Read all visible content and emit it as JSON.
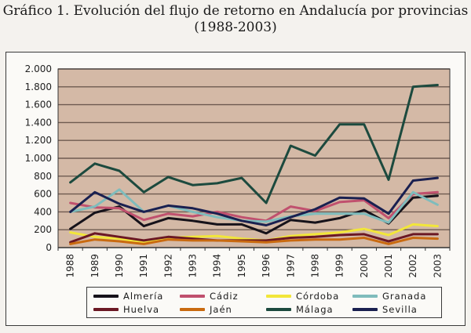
{
  "title": {
    "line1": "Gráfico 1. Evolución del flujo de retorno en Andalucía por provincias",
    "line2": "(1988-2003)"
  },
  "colors": {
    "plot_background": "#d4b9a6",
    "gridline": "#6e5a50",
    "axis": "#333333"
  },
  "chart_data": {
    "type": "line",
    "title": "Gráfico 1. Evolución del flujo de retorno en Andalucía por provincias (1988-2003)",
    "xlabel": "",
    "ylabel": "",
    "grid": true,
    "legend_position": "bottom",
    "ylim": [
      0,
      2000
    ],
    "y_ticks": [
      0,
      200,
      400,
      600,
      800,
      1000,
      1200,
      1400,
      1600,
      1800,
      2000
    ],
    "y_tick_labels": [
      "0",
      "200",
      "400",
      "600",
      "800",
      "1.000",
      "1.200",
      "1.400",
      "1.600",
      "1.800",
      "2.000"
    ],
    "categories": [
      "1988",
      "1989",
      "1990",
      "1991",
      "1992",
      "1993",
      "1994",
      "1995",
      "1996",
      "1997",
      "1998",
      "1999",
      "2000",
      "2001",
      "2002",
      "2003"
    ],
    "series": [
      {
        "name": "Almería",
        "color": "#16121a",
        "values": [
          210,
          390,
          460,
          240,
          330,
          300,
          260,
          260,
          160,
          310,
          280,
          330,
          420,
          270,
          560,
          580
        ]
      },
      {
        "name": "Cádiz",
        "color": "#c0506e",
        "values": [
          500,
          450,
          440,
          310,
          380,
          350,
          400,
          340,
          300,
          460,
          410,
          510,
          530,
          330,
          600,
          620
        ]
      },
      {
        "name": "Córdoba",
        "color": "#f2e63a",
        "values": [
          170,
          120,
          100,
          60,
          110,
          120,
          130,
          100,
          80,
          130,
          150,
          170,
          210,
          140,
          260,
          240
        ]
      },
      {
        "name": "Granada",
        "color": "#7fbcbc",
        "values": [
          400,
          460,
          650,
          400,
          470,
          400,
          340,
          300,
          290,
          350,
          380,
          380,
          380,
          280,
          620,
          480
        ]
      },
      {
        "name": "Huelva",
        "color": "#6b1824",
        "values": [
          60,
          160,
          120,
          80,
          120,
          100,
          80,
          80,
          80,
          110,
          120,
          140,
          150,
          70,
          150,
          150
        ]
      },
      {
        "name": "Jaén",
        "color": "#c96a10",
        "values": [
          40,
          90,
          70,
          40,
          90,
          80,
          80,
          70,
          60,
          80,
          90,
          90,
          110,
          40,
          110,
          100
        ]
      },
      {
        "name": "Málaga",
        "color": "#1c4a3e",
        "values": [
          730,
          940,
          860,
          620,
          790,
          700,
          720,
          780,
          500,
          1140,
          1030,
          1380,
          1380,
          760,
          1800,
          1820
        ]
      },
      {
        "name": "Sevilla",
        "color": "#1a2050",
        "values": [
          400,
          620,
          490,
          400,
          470,
          440,
          380,
          300,
          250,
          340,
          430,
          560,
          550,
          380,
          750,
          780
        ]
      }
    ]
  }
}
